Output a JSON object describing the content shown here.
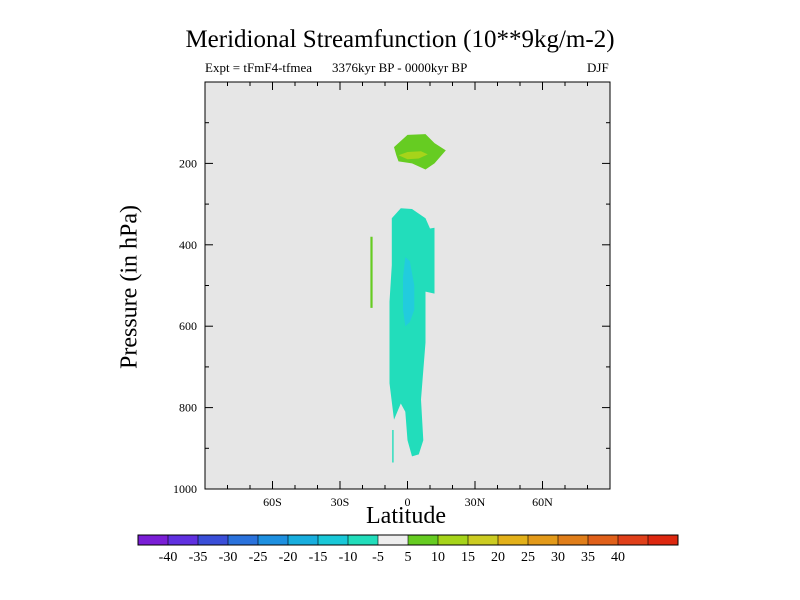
{
  "chart_data": {
    "type": "contour",
    "title": "Meridional Streamfunction (10**9kg/m-2)",
    "left_label": "Expt = tFmF4-tfmea",
    "center_label": "3376kyr BP - 0000kyr BP",
    "right_label": "DJF",
    "xlabel": "Latitude",
    "ylabel": "Pressure (in hPa)",
    "xlim": [
      -90,
      90
    ],
    "ylim": [
      0,
      1000
    ],
    "x_ticks": [
      {
        "value": -60,
        "label": "60S"
      },
      {
        "value": -30,
        "label": "30S"
      },
      {
        "value": 0,
        "label": "0"
      },
      {
        "value": 30,
        "label": "30N"
      },
      {
        "value": 60,
        "label": "60N"
      }
    ],
    "y_ticks": [
      {
        "value": 200,
        "label": "200"
      },
      {
        "value": 400,
        "label": "400"
      },
      {
        "value": 600,
        "label": "600"
      },
      {
        "value": 800,
        "label": "800"
      },
      {
        "value": 1000,
        "label": "1000"
      }
    ],
    "background_color": "#e6e6e6",
    "regions": [
      {
        "name": "positive-5-10-upper",
        "color": "#66cc22",
        "points": [
          [
            -5,
            180
          ],
          [
            -6,
            160
          ],
          [
            0,
            130
          ],
          [
            8,
            128
          ],
          [
            12,
            150
          ],
          [
            17,
            168
          ],
          [
            12,
            200
          ],
          [
            8,
            215
          ],
          [
            2,
            200
          ],
          [
            -4,
            195
          ]
        ]
      },
      {
        "name": "positive-10-15-upper",
        "color": "#a6d41a",
        "points": [
          [
            -4,
            180
          ],
          [
            0,
            172
          ],
          [
            6,
            170
          ],
          [
            9,
            178
          ],
          [
            5,
            188
          ],
          [
            0,
            190
          ]
        ]
      },
      {
        "name": "positive-5-10-thin",
        "color": "#66cc22",
        "points": [
          [
            -16.5,
            380
          ],
          [
            -15.5,
            380
          ],
          [
            -15.5,
            555
          ],
          [
            -16.5,
            555
          ]
        ]
      },
      {
        "name": "negative-5-10-main",
        "color": "#22ddbb",
        "points": [
          [
            -7,
            335
          ],
          [
            -3,
            310
          ],
          [
            2,
            312
          ],
          [
            8,
            335
          ],
          [
            10,
            360
          ],
          [
            12,
            358
          ],
          [
            12,
            520
          ],
          [
            8,
            515
          ],
          [
            8,
            640
          ],
          [
            6,
            780
          ],
          [
            7,
            880
          ],
          [
            5,
            915
          ],
          [
            2,
            920
          ],
          [
            0,
            880
          ],
          [
            -1,
            810
          ],
          [
            -3,
            790
          ],
          [
            -6,
            830
          ],
          [
            -8,
            740
          ],
          [
            -8,
            540
          ],
          [
            -7,
            450
          ]
        ]
      },
      {
        "name": "negative-5-10-spike",
        "color": "#22ddbb",
        "points": [
          [
            -6.8,
            855
          ],
          [
            -6.2,
            855
          ],
          [
            -6.2,
            935
          ],
          [
            -6.8,
            935
          ]
        ]
      },
      {
        "name": "negative-10-15-core",
        "color": "#22ccdd",
        "points": [
          [
            -1,
            430
          ],
          [
            1,
            440
          ],
          [
            3,
            500
          ],
          [
            3,
            560
          ],
          [
            1,
            590
          ],
          [
            -1,
            600
          ],
          [
            -2,
            560
          ],
          [
            -2,
            480
          ]
        ]
      }
    ],
    "colorbar": {
      "colors": [
        "#7a1ed6",
        "#6030e0",
        "#3a4ed8",
        "#2a72dc",
        "#1e90e0",
        "#18aede",
        "#19c8d8",
        "#22ddbb",
        "#eeeeee",
        "#66cc22",
        "#a6d41a",
        "#cccc22",
        "#e3b11a",
        "#e39a1a",
        "#e07e1a",
        "#e0601a",
        "#e0401a",
        "#dd2810"
      ],
      "labels": [
        "-40",
        "-35",
        "-30",
        "-25",
        "-20",
        "-15",
        "-10",
        "-5",
        "5",
        "10",
        "15",
        "20",
        "25",
        "30",
        "35",
        "40"
      ]
    }
  }
}
